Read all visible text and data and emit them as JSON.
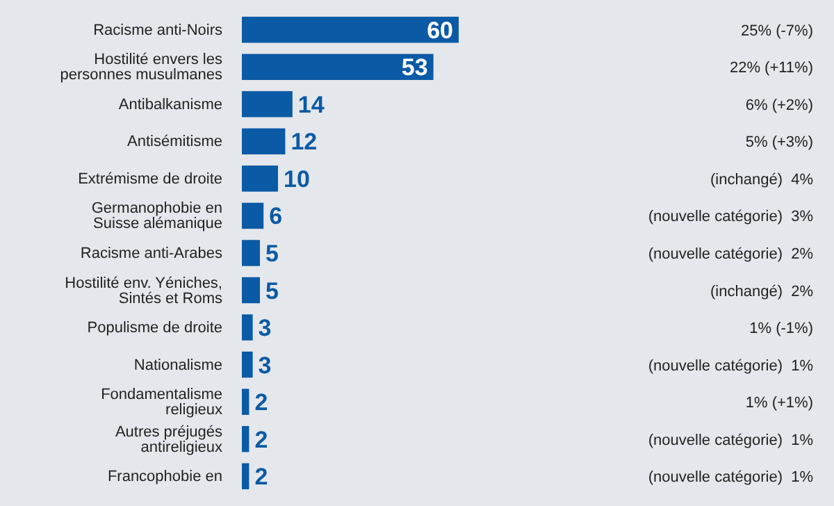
{
  "chart_data": {
    "type": "bar",
    "orientation": "horizontal",
    "data_labels": true,
    "color": "#0b5aa5",
    "categories": [
      "Racisme anti-Noirs",
      "Hostilité envers les\npersonnes musulmanes",
      "Antibalkanisme",
      "Antisémitisme",
      "Extrémisme de droite",
      "Germanophobie en\nSuisse alémanique",
      "Racisme anti-Arabes",
      "Hostilité env. Yéniches,\nSintés et Roms",
      "Populisme de droite",
      "Nationalisme",
      "Fondamentalisme\nreligieux",
      "Autres préjugés\nantireligieux",
      "Francophobie en"
    ],
    "values": [
      60,
      53,
      14,
      12,
      10,
      6,
      5,
      5,
      3,
      3,
      2,
      2,
      2
    ],
    "annotations": [
      "25% (-7%)",
      "22% (+11%)",
      "6% (+2%)",
      "5% (+3%)",
      "(inchangé)  4%",
      "(nouvelle catégorie)  3%",
      "(nouvelle catégorie)  2%",
      "(inchangé)  2%",
      "1% (-1%)",
      "(nouvelle catégorie)  1%",
      "1% (+1%)",
      "(nouvelle catégorie)  1%",
      "(nouvelle catégorie)  1%"
    ]
  }
}
